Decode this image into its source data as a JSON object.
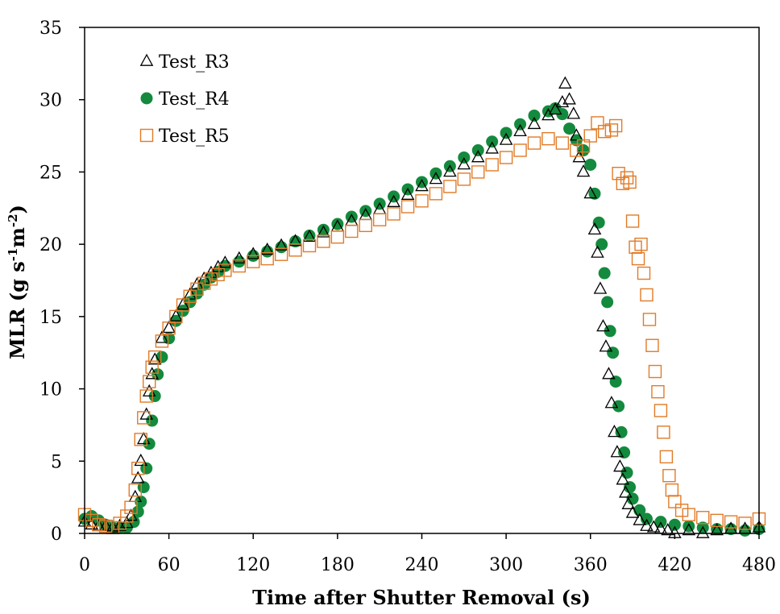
{
  "chart_data": {
    "type": "scatter",
    "title": "",
    "xlabel": "Time after Shutter Removal (s)",
    "ylabel_parts": {
      "base": "MLR (g s",
      "exp1": "-1",
      "mid": "m",
      "exp2": "-2",
      "end": ")"
    },
    "xlim": [
      0,
      480
    ],
    "ylim": [
      0,
      35
    ],
    "xticks": [
      0,
      60,
      120,
      180,
      240,
      300,
      360,
      420,
      480
    ],
    "yticks": [
      0,
      5,
      10,
      15,
      20,
      25,
      30,
      35
    ],
    "grid": false,
    "legend_position": "top-left",
    "series": [
      {
        "name": "Test_R3",
        "marker": "triangle-open",
        "color": "#000000",
        "points": [
          [
            0,
            0.8
          ],
          [
            5,
            0.6
          ],
          [
            10,
            0.5
          ],
          [
            15,
            0.5
          ],
          [
            20,
            0.4
          ],
          [
            25,
            0.5
          ],
          [
            30,
            0.7
          ],
          [
            33,
            1.2
          ],
          [
            36,
            2.5
          ],
          [
            38,
            3.8
          ],
          [
            40,
            5.0
          ],
          [
            42,
            6.5
          ],
          [
            44,
            8.2
          ],
          [
            46,
            9.8
          ],
          [
            48,
            11.0
          ],
          [
            50,
            12.0
          ],
          [
            55,
            13.5
          ],
          [
            60,
            14.2
          ],
          [
            65,
            15.0
          ],
          [
            70,
            15.8
          ],
          [
            75,
            16.5
          ],
          [
            80,
            17.2
          ],
          [
            85,
            17.6
          ],
          [
            90,
            18.0
          ],
          [
            95,
            18.4
          ],
          [
            100,
            18.7
          ],
          [
            110,
            19.0
          ],
          [
            120,
            19.3
          ],
          [
            130,
            19.6
          ],
          [
            140,
            19.9
          ],
          [
            150,
            20.2
          ],
          [
            160,
            20.5
          ],
          [
            170,
            20.8
          ],
          [
            180,
            21.2
          ],
          [
            190,
            21.6
          ],
          [
            200,
            22.0
          ],
          [
            210,
            22.4
          ],
          [
            220,
            22.9
          ],
          [
            230,
            23.4
          ],
          [
            240,
            24.0
          ],
          [
            250,
            24.5
          ],
          [
            260,
            25.0
          ],
          [
            270,
            25.5
          ],
          [
            280,
            26.0
          ],
          [
            290,
            26.6
          ],
          [
            300,
            27.2
          ],
          [
            310,
            27.8
          ],
          [
            320,
            28.3
          ],
          [
            330,
            28.9
          ],
          [
            335,
            29.3
          ],
          [
            340,
            29.8
          ],
          [
            342,
            31.1
          ],
          [
            345,
            30.0
          ],
          [
            348,
            29.0
          ],
          [
            350,
            27.5
          ],
          [
            352,
            26.0
          ],
          [
            355,
            25.0
          ],
          [
            360,
            23.5
          ],
          [
            363,
            21.0
          ],
          [
            365,
            19.4
          ],
          [
            367,
            16.9
          ],
          [
            369,
            14.3
          ],
          [
            371,
            12.9
          ],
          [
            373,
            11.0
          ],
          [
            375,
            9.0
          ],
          [
            377,
            7.0
          ],
          [
            379,
            5.6
          ],
          [
            381,
            4.6
          ],
          [
            383,
            3.7
          ],
          [
            385,
            2.8
          ],
          [
            387,
            2.0
          ],
          [
            390,
            1.4
          ],
          [
            395,
            0.9
          ],
          [
            400,
            0.5
          ],
          [
            405,
            0.4
          ],
          [
            410,
            0.3
          ],
          [
            415,
            0.2
          ],
          [
            420,
            0.0
          ],
          [
            430,
            0.2
          ],
          [
            440,
            0.0
          ],
          [
            450,
            0.2
          ],
          [
            460,
            0.3
          ],
          [
            470,
            0.3
          ],
          [
            480,
            0.4
          ]
        ]
      },
      {
        "name": "Test_R4",
        "marker": "circle-filled",
        "color": "#138a3d",
        "points": [
          [
            0,
            1.0
          ],
          [
            5,
            1.2
          ],
          [
            10,
            0.9
          ],
          [
            15,
            0.6
          ],
          [
            20,
            0.4
          ],
          [
            25,
            0.4
          ],
          [
            30,
            0.4
          ],
          [
            35,
            0.8
          ],
          [
            38,
            1.5
          ],
          [
            40,
            2.2
          ],
          [
            42,
            3.2
          ],
          [
            44,
            4.5
          ],
          [
            46,
            6.2
          ],
          [
            48,
            7.8
          ],
          [
            50,
            9.5
          ],
          [
            52,
            11.0
          ],
          [
            55,
            12.2
          ],
          [
            60,
            13.5
          ],
          [
            65,
            14.7
          ],
          [
            70,
            15.4
          ],
          [
            75,
            16.0
          ],
          [
            80,
            16.6
          ],
          [
            85,
            17.2
          ],
          [
            90,
            17.7
          ],
          [
            95,
            18.1
          ],
          [
            100,
            18.5
          ],
          [
            110,
            18.8
          ],
          [
            120,
            19.2
          ],
          [
            130,
            19.5
          ],
          [
            140,
            19.8
          ],
          [
            150,
            20.2
          ],
          [
            160,
            20.6
          ],
          [
            170,
            21.0
          ],
          [
            180,
            21.4
          ],
          [
            190,
            21.9
          ],
          [
            200,
            22.3
          ],
          [
            210,
            22.8
          ],
          [
            220,
            23.3
          ],
          [
            230,
            23.8
          ],
          [
            240,
            24.3
          ],
          [
            250,
            24.9
          ],
          [
            260,
            25.4
          ],
          [
            270,
            26.0
          ],
          [
            280,
            26.5
          ],
          [
            290,
            27.1
          ],
          [
            300,
            27.7
          ],
          [
            310,
            28.3
          ],
          [
            320,
            28.9
          ],
          [
            330,
            29.2
          ],
          [
            335,
            29.4
          ],
          [
            340,
            29.0
          ],
          [
            345,
            28.0
          ],
          [
            350,
            27.2
          ],
          [
            355,
            26.5
          ],
          [
            360,
            25.5
          ],
          [
            363,
            23.5
          ],
          [
            366,
            21.5
          ],
          [
            368,
            20.0
          ],
          [
            370,
            18.0
          ],
          [
            372,
            16.0
          ],
          [
            374,
            14.0
          ],
          [
            376,
            12.5
          ],
          [
            378,
            10.5
          ],
          [
            380,
            8.8
          ],
          [
            382,
            7.0
          ],
          [
            384,
            5.6
          ],
          [
            386,
            4.2
          ],
          [
            388,
            3.2
          ],
          [
            390,
            2.4
          ],
          [
            395,
            1.6
          ],
          [
            400,
            1.0
          ],
          [
            410,
            0.8
          ],
          [
            420,
            0.6
          ],
          [
            430,
            0.5
          ],
          [
            440,
            0.4
          ],
          [
            450,
            0.3
          ],
          [
            460,
            0.3
          ],
          [
            470,
            0.2
          ],
          [
            480,
            0.3
          ]
        ]
      },
      {
        "name": "Test_R5",
        "marker": "square-open",
        "color": "#e07b28",
        "points": [
          [
            0,
            1.3
          ],
          [
            5,
            0.9
          ],
          [
            10,
            0.6
          ],
          [
            15,
            0.5
          ],
          [
            20,
            0.4
          ],
          [
            25,
            0.7
          ],
          [
            30,
            1.2
          ],
          [
            33,
            1.8
          ],
          [
            36,
            3.0
          ],
          [
            38,
            4.5
          ],
          [
            40,
            6.5
          ],
          [
            42,
            8.0
          ],
          [
            44,
            9.5
          ],
          [
            46,
            10.5
          ],
          [
            48,
            11.5
          ],
          [
            50,
            12.2
          ],
          [
            55,
            13.3
          ],
          [
            60,
            14.2
          ],
          [
            65,
            15.0
          ],
          [
            70,
            15.8
          ],
          [
            75,
            16.4
          ],
          [
            80,
            16.9
          ],
          [
            85,
            17.3
          ],
          [
            90,
            17.6
          ],
          [
            95,
            17.9
          ],
          [
            100,
            18.2
          ],
          [
            110,
            18.5
          ],
          [
            120,
            18.8
          ],
          [
            130,
            19.0
          ],
          [
            140,
            19.3
          ],
          [
            150,
            19.6
          ],
          [
            160,
            19.9
          ],
          [
            170,
            20.2
          ],
          [
            180,
            20.5
          ],
          [
            190,
            20.9
          ],
          [
            200,
            21.3
          ],
          [
            210,
            21.7
          ],
          [
            220,
            22.1
          ],
          [
            230,
            22.6
          ],
          [
            240,
            23.0
          ],
          [
            250,
            23.5
          ],
          [
            260,
            24.0
          ],
          [
            270,
            24.5
          ],
          [
            280,
            25.0
          ],
          [
            290,
            25.5
          ],
          [
            300,
            26.0
          ],
          [
            310,
            26.5
          ],
          [
            320,
            27.0
          ],
          [
            330,
            27.3
          ],
          [
            340,
            27.0
          ],
          [
            350,
            26.5
          ],
          [
            355,
            26.8
          ],
          [
            360,
            27.5
          ],
          [
            365,
            28.4
          ],
          [
            370,
            27.8
          ],
          [
            375,
            27.9
          ],
          [
            378,
            28.2
          ],
          [
            380,
            24.9
          ],
          [
            383,
            24.2
          ],
          [
            386,
            24.6
          ],
          [
            388,
            24.3
          ],
          [
            390,
            21.6
          ],
          [
            392,
            19.8
          ],
          [
            394,
            19.0
          ],
          [
            396,
            20.0
          ],
          [
            398,
            18.0
          ],
          [
            400,
            16.5
          ],
          [
            402,
            14.8
          ],
          [
            404,
            13.0
          ],
          [
            406,
            11.2
          ],
          [
            408,
            9.8
          ],
          [
            410,
            8.5
          ],
          [
            412,
            7.0
          ],
          [
            414,
            5.3
          ],
          [
            416,
            4.0
          ],
          [
            418,
            3.0
          ],
          [
            420,
            2.2
          ],
          [
            425,
            1.6
          ],
          [
            430,
            1.3
          ],
          [
            440,
            1.1
          ],
          [
            450,
            0.9
          ],
          [
            460,
            0.8
          ],
          [
            470,
            0.7
          ],
          [
            480,
            1.0
          ]
        ]
      }
    ]
  }
}
